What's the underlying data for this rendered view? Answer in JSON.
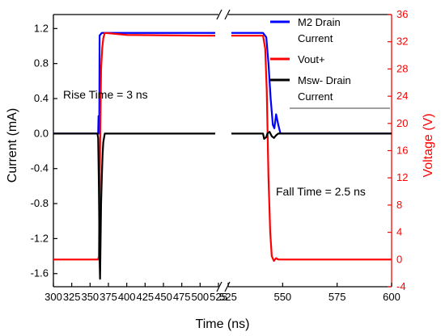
{
  "chart_data": {
    "type": "line",
    "xlabel": "Time (ns)",
    "ylabel_left": "Current (mA)",
    "ylabel_right": "Voltage (V)",
    "x_ticks": [
      "300",
      "325",
      "350",
      "375",
      "400",
      "425",
      "450",
      "475",
      "500",
      "525",
      "525",
      "550",
      "575",
      "600"
    ],
    "y_left_ticks": [
      "1.2",
      "0.8",
      "0.4",
      "0.0",
      "-0.4",
      "-0.8",
      "-1.2",
      "-1.6"
    ],
    "y_right_ticks": [
      "36",
      "32",
      "28",
      "24",
      "20",
      "16",
      "12",
      "8",
      "4",
      "0",
      "-4"
    ],
    "xlim_segments": [
      [
        300,
        525
      ],
      [
        525,
        600
      ]
    ],
    "ylim_left": [
      -1.75,
      1.36
    ],
    "ylim_right": [
      -4,
      36
    ],
    "broken_x_axis": true,
    "annotations": [
      {
        "text": "Rise Time = 3 ns"
      },
      {
        "text": "Fall Time = 2.5 ns"
      }
    ],
    "legend": {
      "placement": "top-right",
      "entries": [
        {
          "lines": [
            "M2 Drain",
            "Current"
          ],
          "color": "#0000ff"
        },
        {
          "lines": [
            "Vout+"
          ],
          "color": "#ff0000"
        },
        {
          "lines": [
            "Msw- Drain",
            "Current"
          ],
          "color": "#000000"
        }
      ]
    },
    "colors": {
      "left_axis": "#000000",
      "right_axis": "#ff0000"
    },
    "series": [
      {
        "name": "M2 Drain Current",
        "axis": "left",
        "color": "#0000ff",
        "points": [
          [
            300,
            0
          ],
          [
            361,
            0
          ],
          [
            361.5,
            0.2
          ],
          [
            362.5,
            0
          ],
          [
            363,
            1.12
          ],
          [
            366,
            1.15
          ],
          [
            520,
            1.15
          ],
          [
            525,
            1.15
          ],
          [
            541,
            1.15
          ],
          [
            542.5,
            1.1
          ],
          [
            543.5,
            0.8
          ],
          [
            544.5,
            0.4
          ],
          [
            545.5,
            0.1
          ],
          [
            546.2,
            0.06
          ],
          [
            547,
            0.22
          ],
          [
            548,
            0.1
          ],
          [
            549,
            0
          ],
          [
            600,
            0
          ]
        ]
      },
      {
        "name": "Vout+",
        "axis": "right",
        "color": "#ff0000",
        "points": [
          [
            300,
            0
          ],
          [
            361,
            0
          ],
          [
            362,
            0.5
          ],
          [
            363,
            10
          ],
          [
            364,
            20
          ],
          [
            365,
            28
          ],
          [
            366.5,
            31
          ],
          [
            368,
            32.5
          ],
          [
            370,
            33.3
          ],
          [
            380,
            33.2
          ],
          [
            400,
            33
          ],
          [
            500,
            32.9
          ],
          [
            520,
            32.9
          ],
          [
            525,
            32.9
          ],
          [
            541,
            32.9
          ],
          [
            542,
            31
          ],
          [
            542.7,
            25
          ],
          [
            543.5,
            12
          ],
          [
            544.3,
            4
          ],
          [
            545,
            0.5
          ],
          [
            546,
            -0.2
          ],
          [
            547,
            0.2
          ],
          [
            548,
            0
          ],
          [
            600,
            0
          ]
        ]
      },
      {
        "name": "Msw- Drain Current",
        "axis": "left",
        "color": "#000000",
        "points": [
          [
            300,
            0
          ],
          [
            360,
            0
          ],
          [
            361,
            -0.05
          ],
          [
            362,
            -0.6
          ],
          [
            363,
            -1.45
          ],
          [
            363.6,
            -1.66
          ],
          [
            364.2,
            -1.3
          ],
          [
            365,
            -0.8
          ],
          [
            366,
            -0.5
          ],
          [
            367,
            -0.25
          ],
          [
            368,
            -0.1
          ],
          [
            369,
            -0.05
          ],
          [
            370,
            0
          ],
          [
            520,
            0
          ],
          [
            525,
            0
          ],
          [
            541,
            0
          ],
          [
            541.5,
            -0.06
          ],
          [
            542.5,
            -0.04
          ],
          [
            543,
            0
          ],
          [
            544,
            0.02
          ],
          [
            545,
            -0.03
          ],
          [
            546,
            -0.05
          ],
          [
            547,
            -0.02
          ],
          [
            548,
            0
          ],
          [
            600,
            0
          ]
        ]
      }
    ]
  }
}
